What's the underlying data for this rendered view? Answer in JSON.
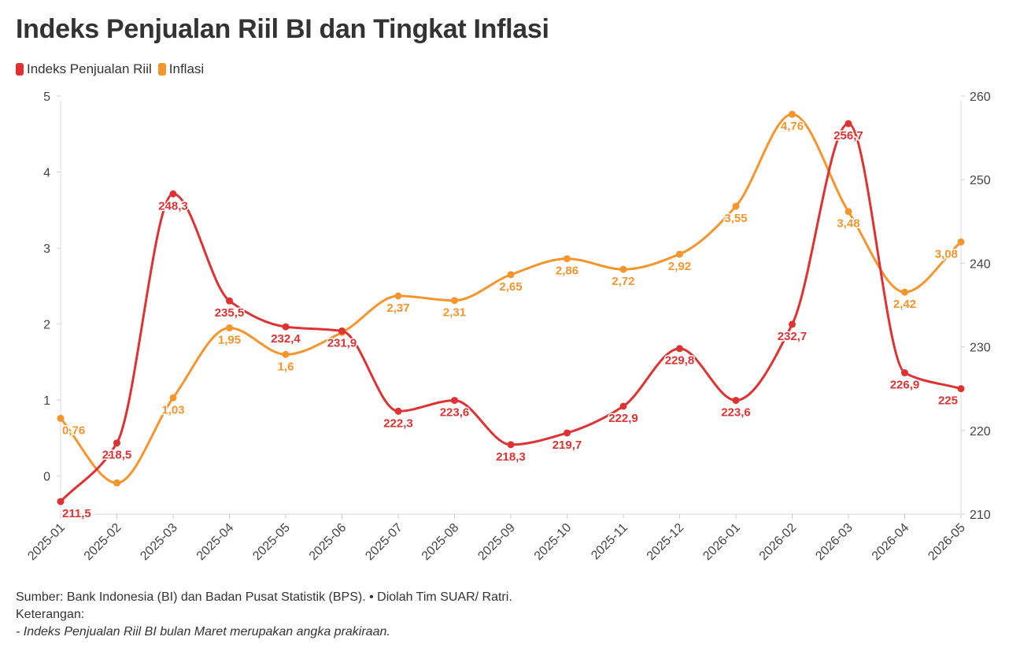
{
  "chart_data": {
    "type": "line",
    "title": "Indeks Penjualan Riil BI dan Tingkat Inflasi",
    "categories": [
      "2025-01",
      "2025-02",
      "2025-03",
      "2025-04",
      "2025-05",
      "2025-06",
      "2025-07",
      "2025-08",
      "2025-09",
      "2025-10",
      "2025-11",
      "2025-12",
      "2026-01",
      "2026-02",
      "2026-03",
      "2026-04",
      "2026-05"
    ],
    "series": [
      {
        "name": "Indeks Penjualan Riil",
        "axis": "right",
        "color": "#e03232",
        "values": [
          211.5,
          218.5,
          248.3,
          235.5,
          232.4,
          231.9,
          222.3,
          223.6,
          218.3,
          219.7,
          222.9,
          229.8,
          223.6,
          232.7,
          256.7,
          226.9,
          225
        ],
        "labels": [
          "211,5",
          "218,5",
          "248,3",
          "235,5",
          "232,4",
          "231,9",
          "222,3",
          "223,6",
          "218,3",
          "219,7",
          "222,9",
          "229,8",
          "223,6",
          "232,7",
          "256,7",
          "226,9",
          "225"
        ]
      },
      {
        "name": "Inflasi",
        "axis": "left",
        "color": "#f7952d",
        "values": [
          0.76,
          -0.09,
          1.03,
          1.95,
          1.6,
          1.89,
          2.37,
          2.31,
          2.65,
          2.86,
          2.72,
          2.92,
          3.55,
          4.76,
          3.48,
          2.42,
          3.08
        ],
        "labels": [
          "0,76",
          "",
          "1,03",
          "1,95",
          "1,6",
          "",
          "2,37",
          "2,31",
          "2,65",
          "2,86",
          "2,72",
          "2,92",
          "3,55",
          "4,76",
          "3,48",
          "2,42",
          "3,08"
        ]
      }
    ],
    "y_left": {
      "min": -0.5,
      "max": 5,
      "ticks": [
        0,
        1,
        2,
        3,
        4,
        5
      ]
    },
    "y_right": {
      "min": 210,
      "max": 260,
      "ticks": [
        210,
        220,
        230,
        240,
        250,
        260
      ]
    },
    "grid": false,
    "legend_position": "top-left"
  },
  "footer": {
    "source": "Sumber: Bank Indonesia (BI) dan Badan Pusat Statistik (BPS). • Diolah Tim SUAR/ Ratri.",
    "keterangan": "Keterangan:",
    "note": "- Indeks Penjualan Riil BI bulan Maret merupakan angka prakiraan."
  }
}
